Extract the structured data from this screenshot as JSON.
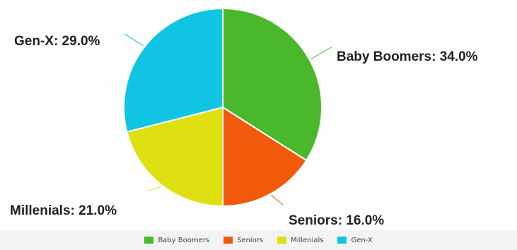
{
  "chart_data": {
    "type": "pie",
    "categories": [
      "Baby Boomers",
      "Seniors",
      "Millenials",
      "Gen-X"
    ],
    "values": [
      34.0,
      16.0,
      21.0,
      29.0
    ],
    "data_labels": [
      "Baby Boomers: 34.0%",
      "Seniors: 16.0%",
      "Millenials: 21.0%",
      "Gen-X: 29.0%"
    ],
    "colors": [
      "#49b82a",
      "#f05a0a",
      "#dfe011",
      "#12c4e4"
    ],
    "legend_position": "bottom",
    "title": ""
  },
  "legend": {
    "items": [
      {
        "label": "Baby Boomers",
        "color": "#49b82a"
      },
      {
        "label": "Seniors",
        "color": "#f05a0a"
      },
      {
        "label": "Millenials",
        "color": "#dfe011"
      },
      {
        "label": "Gen-X",
        "color": "#12c4e4"
      }
    ]
  }
}
